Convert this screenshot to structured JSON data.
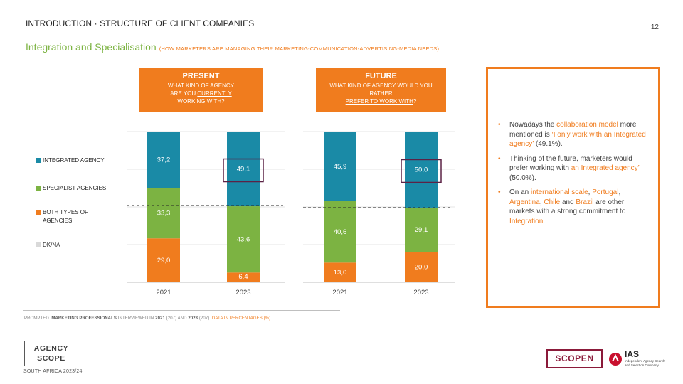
{
  "header": {
    "breadcrumb": "INTRODUCTION · STRUCTURE OF CLIENT COMPANIES",
    "page_number": "12",
    "title": "Integration and Specialisation",
    "subtitle": "(HOW MARKETERS  ARE MANAGING THEIR  MARKETING-COMMUNICATION-ADVERTISING-MEDIA   NEEDS)"
  },
  "panels": {
    "present": {
      "heading": "PRESENT",
      "question_l1": "WHAT KIND OF AGENCY",
      "question_l2_pre": "ARE YOU ",
      "question_l2_ul": "CURRENTLY",
      "question_l3": "WORKING WITH?"
    },
    "future": {
      "heading": "FUTURE",
      "question_l1": "WHAT KIND OF AGENCY WOULD YOU",
      "question_l2": "RATHER",
      "question_l3_ul": "PREFER TO WORK WITH",
      "question_l3_post": "?"
    }
  },
  "legend": [
    {
      "label": "INTEGRATED AGENCY",
      "color": "#1a8aa6"
    },
    {
      "label": "SPECIALIST AGENCIES",
      "color": "#7cb342"
    },
    {
      "label": "BOTH TYPES OF AGENCIES",
      "color": "#f07c1e"
    },
    {
      "label": "DK/NA",
      "color": "#d9d9d9"
    }
  ],
  "chart_data": [
    {
      "type": "bar",
      "stacked": true,
      "title": "PRESENT",
      "categories": [
        "2021",
        "2023"
      ],
      "series": [
        {
          "name": "BOTH TYPES OF AGENCIES",
          "values": [
            29.0,
            6.4
          ],
          "labels": [
            "29,0",
            "6,4"
          ],
          "color": "#f07c1e"
        },
        {
          "name": "SPECIALIST AGENCIES",
          "values": [
            33.3,
            43.6
          ],
          "labels": [
            "33,3",
            "43,6"
          ],
          "color": "#7cb342"
        },
        {
          "name": "INTEGRATED AGENCY",
          "values": [
            37.2,
            49.1
          ],
          "labels": [
            "37,2",
            "49,1"
          ],
          "color": "#1a8aa6"
        }
      ],
      "highlight": {
        "category": "2023",
        "series": "INTEGRATED AGENCY"
      },
      "reference_line": true,
      "ylim": [
        0,
        100
      ]
    },
    {
      "type": "bar",
      "stacked": true,
      "title": "FUTURE",
      "categories": [
        "2021",
        "2023"
      ],
      "series": [
        {
          "name": "BOTH TYPES OF AGENCIES",
          "values": [
            13.0,
            20.0
          ],
          "labels": [
            "13,0",
            "20,0"
          ],
          "color": "#f07c1e"
        },
        {
          "name": "SPECIALIST AGENCIES",
          "values": [
            40.6,
            29.1
          ],
          "labels": [
            "40,6",
            "29,1"
          ],
          "color": "#7cb342"
        },
        {
          "name": "INTEGRATED AGENCY",
          "values": [
            45.9,
            50.0
          ],
          "labels": [
            "45,9",
            "50,0"
          ],
          "color": "#1a8aa6"
        }
      ],
      "highlight": {
        "category": "2023",
        "series": "INTEGRATED AGENCY"
      },
      "reference_line": true,
      "ylim": [
        0,
        100
      ]
    }
  ],
  "bullets": {
    "b1": {
      "t1": "Nowadays the ",
      "h1": "collaboration model",
      "t2": " more mentioned is ",
      "h2": "‘I only work with an Integrated agency’",
      "t3": " (49.1%)."
    },
    "b2": {
      "t1": "Thinking of the future, marketers would prefer working with ",
      "h1": "an Integrated agency’",
      "t2": " (50.0%)."
    },
    "b3": {
      "t1": "On an ",
      "h1": "international scale",
      "t2": ", ",
      "h2": "Portugal",
      "t3": ", ",
      "h3": "Argentina",
      "t4": ", ",
      "h4": "Chile",
      "t5": " and ",
      "h5": "Brazil",
      "t6": " are other markets with a strong commitment to ",
      "h6": "Integration",
      "t7": "."
    }
  },
  "footnote": {
    "t1": "PROMPTED. ",
    "b1": "MARKETING PROFESSIONALS",
    "t2": " INTERVIEWED IN ",
    "b2": "2021",
    "t3": " (207) AND ",
    "b3": "2023",
    "t4": " (207). ",
    "hl": "DATA IN PERCENTAGES (%)."
  },
  "logos": {
    "agency_line1": "AGENCY",
    "agency_line2": "SCOPE",
    "edition": "SOUTH AFRICA 2023/24",
    "scopen": "SCOPEN",
    "ias": "IAS",
    "ias_desc": "Independent Agency Search and Selection Company"
  }
}
